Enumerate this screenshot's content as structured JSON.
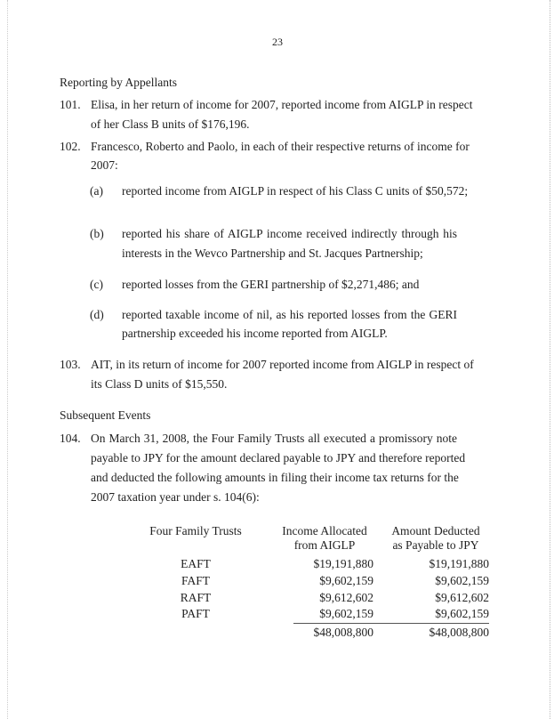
{
  "page_number": "23",
  "section1_heading": "Reporting by Appellants",
  "para101": {
    "num": "101.",
    "lines": [
      "Elisa, in her return of income for 2007, reported income from AIGLP in respect",
      "of her Class B units of $176,196."
    ]
  },
  "para102": {
    "num": "102.",
    "lines": [
      "Francesco, Roberto and Paolo, in each of their respective returns of income for",
      "2007:"
    ],
    "items": [
      {
        "label": "(a)",
        "lines": [
          "reported income from AIGLP in respect of his Class C units of $50,572;"
        ]
      },
      {
        "label": "(b)",
        "lines": [
          "reported his share of AIGLP income received indirectly through his",
          "interests in the Wevco Partnership and St. Jacques Partnership;"
        ]
      },
      {
        "label": "(c)",
        "lines": [
          "reported losses from the GERI partnership of $2,271,486; and"
        ]
      },
      {
        "label": "(d)",
        "lines": [
          "reported taxable income of nil, as his reported losses from the GERI",
          "partnership exceeded his income reported from AIGLP."
        ]
      }
    ]
  },
  "para103": {
    "num": "103.",
    "lines": [
      "AIT, in its return of income for 2007 reported income from AIGLP in respect of",
      "its Class D units of $15,550."
    ]
  },
  "section2_heading": "Subsequent Events",
  "para104": {
    "num": "104.",
    "lines": [
      "On March 31, 2008, the Four Family Trusts all executed a promissory note",
      "payable to JPY for the amount declared payable to JPY and therefore reported",
      "and deducted the following amounts in filing their income tax returns for the",
      "2007 taxation year under s. 104(6):"
    ]
  },
  "table": {
    "headers": [
      "Four Family Trusts",
      "Income Allocated",
      "from AIGLP",
      "Amount Deducted",
      "as Payable to JPY"
    ],
    "rows": [
      {
        "trust": "EAFT",
        "income": "$19,191,880",
        "deducted": "$19,191,880"
      },
      {
        "trust": "FAFT",
        "income": "$9,602,159",
        "deducted": "$9,602,159"
      },
      {
        "trust": "RAFT",
        "income": "$9,612,602",
        "deducted": "$9,612,602"
      },
      {
        "trust": "PAFT",
        "income": "$9,602,159",
        "deducted": "$9,602,159"
      }
    ],
    "totals": {
      "income": "$48,008,800",
      "deducted": "$48,008,800"
    }
  }
}
